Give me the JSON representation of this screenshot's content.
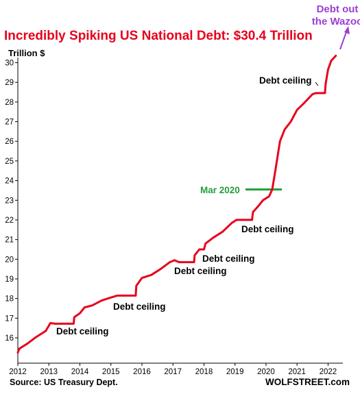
{
  "chart_data": {
    "type": "line",
    "title": "Incredibly Spiking US National Debt: $30.4 Trillion",
    "ylabel": "Trillion $",
    "xlabel": "",
    "xlim": [
      2012,
      2022.3
    ],
    "ylim": [
      15.2,
      30.4
    ],
    "xticks": [
      "2012",
      "2013",
      "2014",
      "2015",
      "2016",
      "2017",
      "2018",
      "2019",
      "2020",
      "2021",
      "2022"
    ],
    "yticks": [
      "16",
      "17",
      "18",
      "19",
      "20",
      "21",
      "22",
      "23",
      "24",
      "25",
      "26",
      "27",
      "28",
      "29",
      "30"
    ],
    "grid": false,
    "series": [
      {
        "color": "#e8001c",
        "points": [
          [
            2012.0,
            15.25
          ],
          [
            2012.05,
            15.45
          ],
          [
            2012.3,
            15.7
          ],
          [
            2012.6,
            16.05
          ],
          [
            2012.9,
            16.35
          ],
          [
            2013.05,
            16.75
          ],
          [
            2013.2,
            16.72
          ],
          [
            2013.5,
            16.72
          ],
          [
            2013.8,
            16.72
          ],
          [
            2013.82,
            17.05
          ],
          [
            2014.0,
            17.25
          ],
          [
            2014.15,
            17.55
          ],
          [
            2014.4,
            17.65
          ],
          [
            2014.7,
            17.9
          ],
          [
            2015.0,
            18.05
          ],
          [
            2015.2,
            18.15
          ],
          [
            2015.5,
            18.15
          ],
          [
            2015.8,
            18.15
          ],
          [
            2015.82,
            18.65
          ],
          [
            2016.0,
            19.05
          ],
          [
            2016.3,
            19.2
          ],
          [
            2016.6,
            19.5
          ],
          [
            2016.9,
            19.85
          ],
          [
            2017.05,
            19.95
          ],
          [
            2017.2,
            19.85
          ],
          [
            2017.5,
            19.85
          ],
          [
            2017.68,
            19.85
          ],
          [
            2017.7,
            20.2
          ],
          [
            2017.85,
            20.5
          ],
          [
            2018.0,
            20.5
          ],
          [
            2018.05,
            20.8
          ],
          [
            2018.3,
            21.1
          ],
          [
            2018.6,
            21.4
          ],
          [
            2018.9,
            21.85
          ],
          [
            2019.05,
            22.0
          ],
          [
            2019.3,
            22.0
          ],
          [
            2019.55,
            22.0
          ],
          [
            2019.58,
            22.4
          ],
          [
            2019.75,
            22.7
          ],
          [
            2019.9,
            23.0
          ],
          [
            2020.1,
            23.2
          ],
          [
            2020.2,
            23.55
          ],
          [
            2020.3,
            24.5
          ],
          [
            2020.45,
            26.0
          ],
          [
            2020.6,
            26.6
          ],
          [
            2020.8,
            27.0
          ],
          [
            2021.0,
            27.6
          ],
          [
            2021.2,
            27.9
          ],
          [
            2021.5,
            28.4
          ],
          [
            2021.6,
            28.45
          ],
          [
            2021.9,
            28.45
          ],
          [
            2021.92,
            28.9
          ],
          [
            2022.0,
            29.65
          ],
          [
            2022.1,
            30.1
          ],
          [
            2022.25,
            30.35
          ]
        ]
      }
    ],
    "annotations": {
      "debt_ceiling_1": "Debt ceiling",
      "debt_ceiling_2": "Debt ceiling",
      "debt_ceiling_3": "Debt ceiling",
      "debt_ceiling_4": "Debt ceiling",
      "debt_ceiling_5": "Debt ceiling",
      "debt_ceiling_6": "Debt ceiling",
      "mar_2020": "Mar 2020",
      "debt_out_line1": "Debt out",
      "debt_out_line2": "the Wazoo"
    },
    "source": "Source: US Treasury Dept.",
    "brand": "WOLFSTREET.com"
  }
}
